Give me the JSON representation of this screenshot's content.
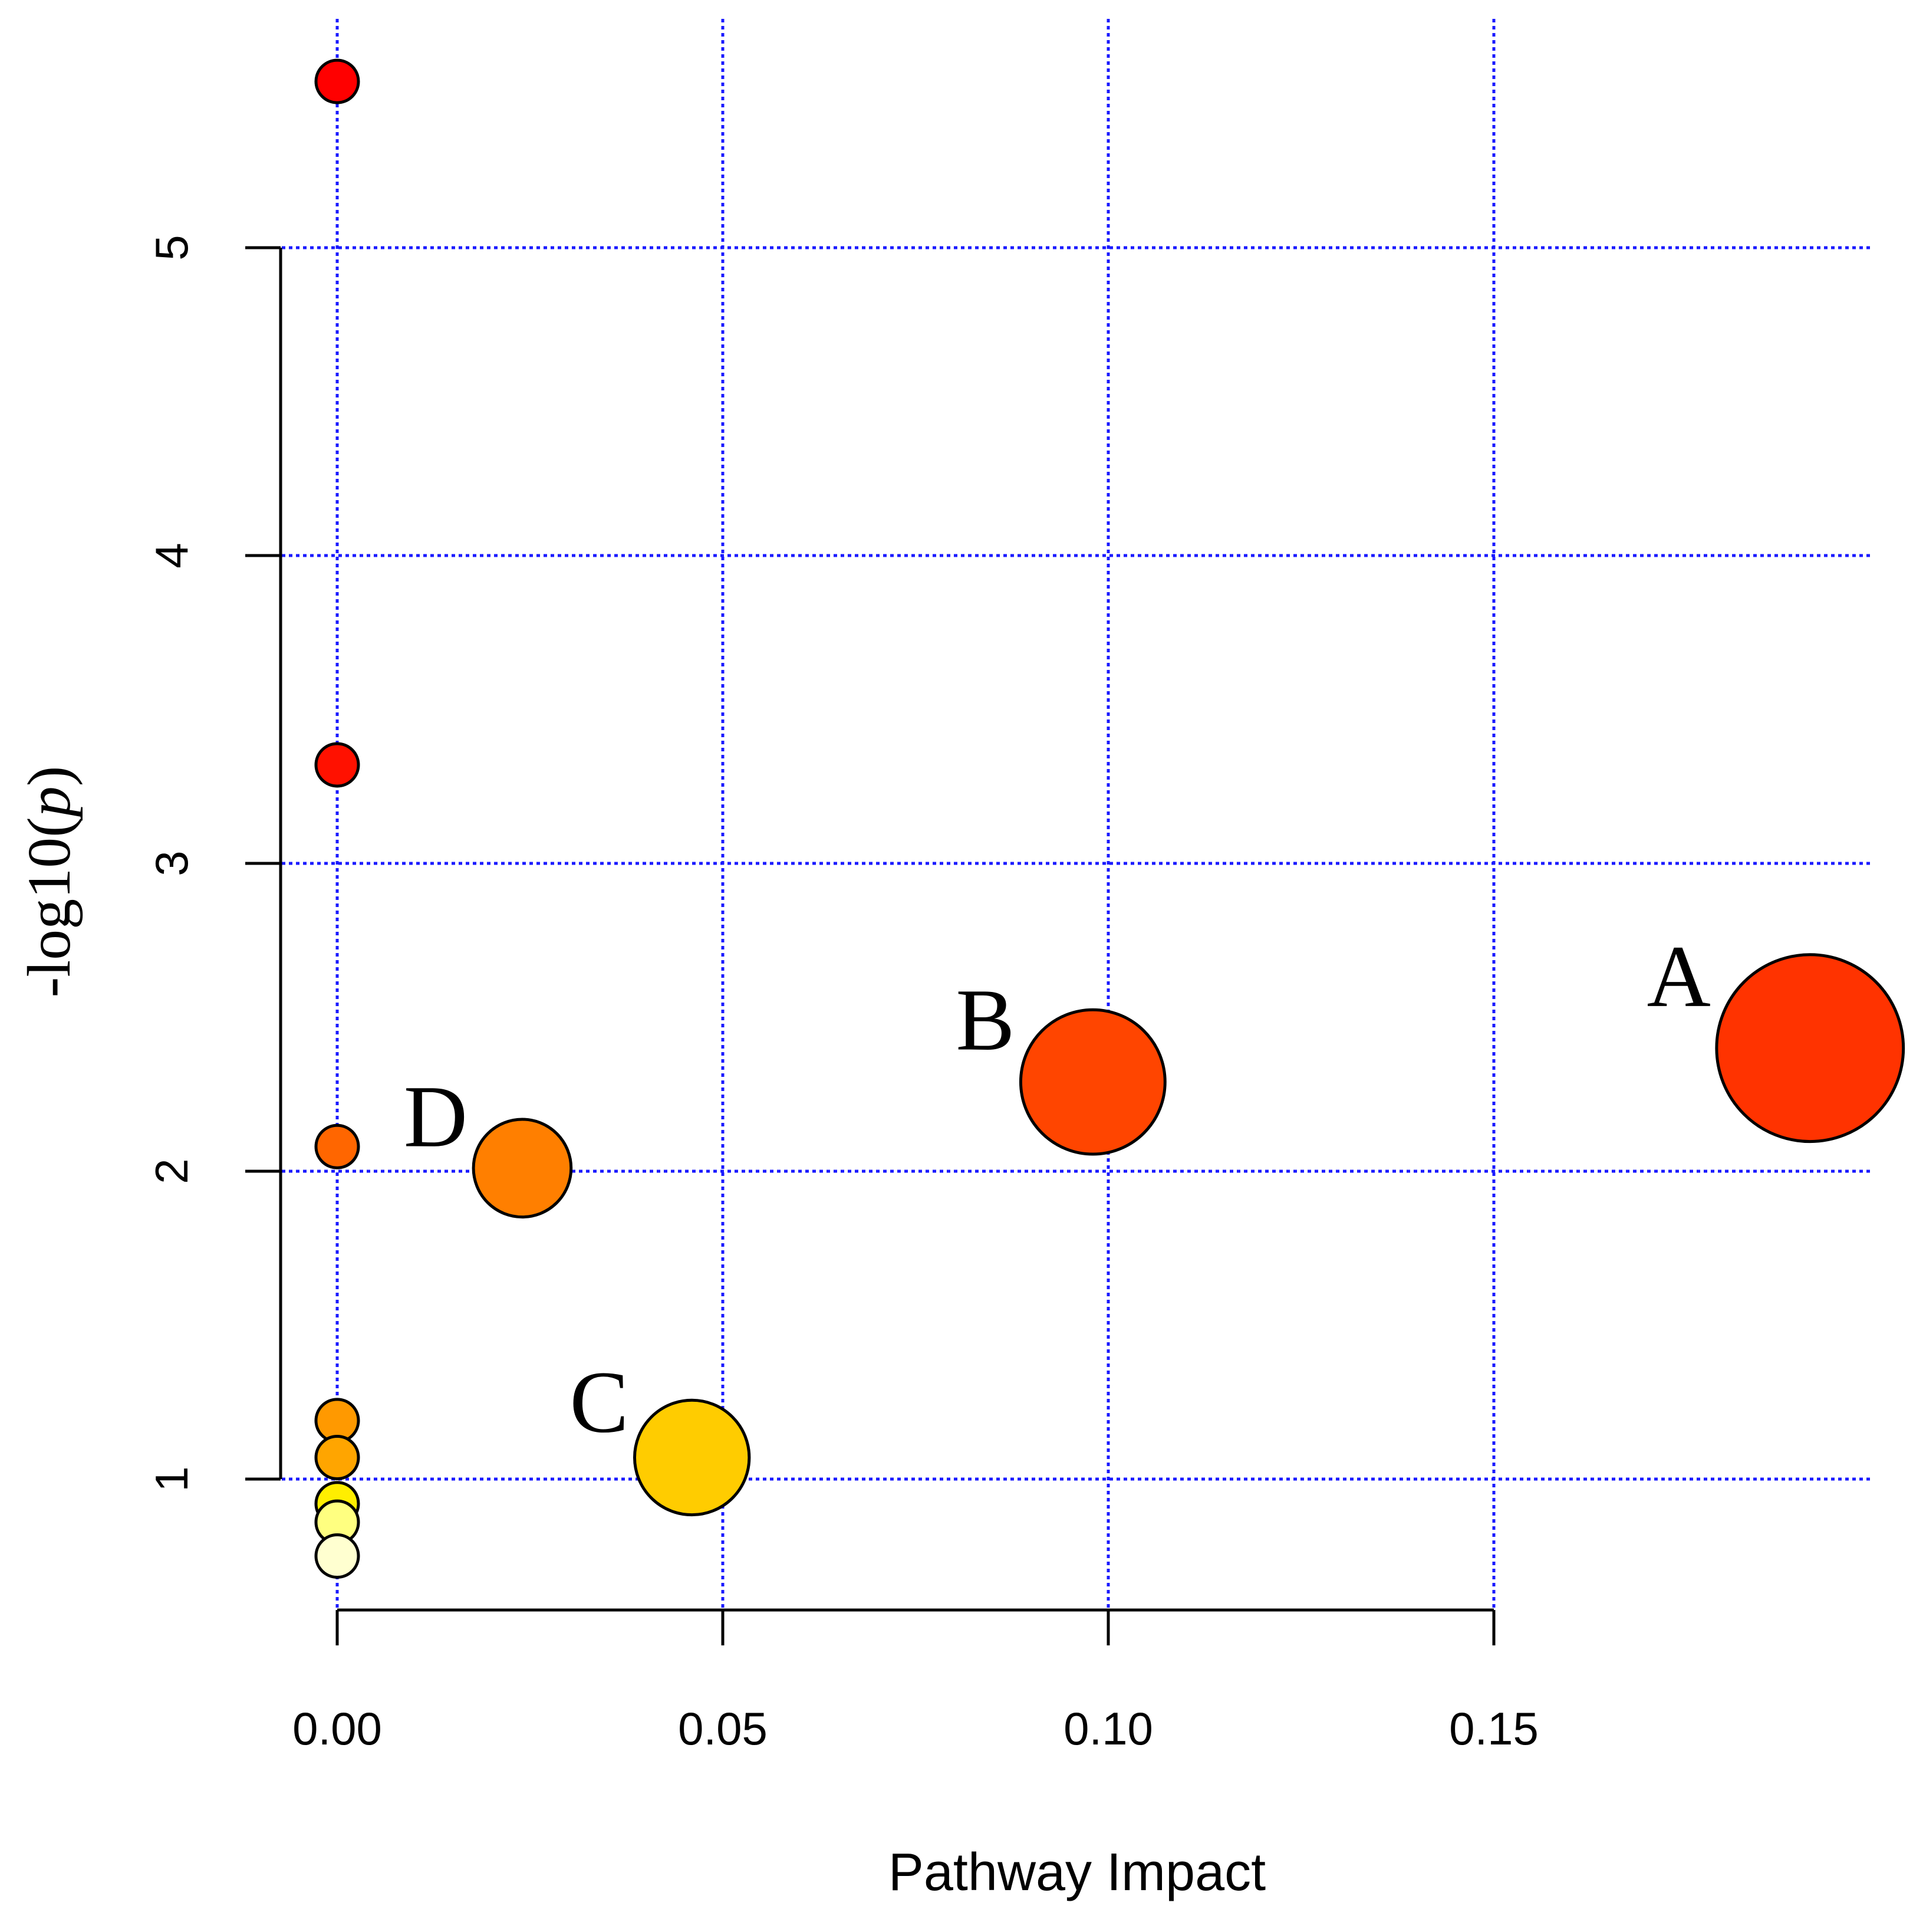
{
  "chart_data": {
    "type": "scatter",
    "title": "",
    "xlabel": "Pathway Impact",
    "ylabel_prefix": "-log10(",
    "ylabel_var": "p",
    "ylabel_suffix": ")",
    "xlim": [
      0.0,
      0.2
    ],
    "ylim": [
      0.6,
      5.55
    ],
    "x_axis_range": [
      0.0,
      0.15
    ],
    "y_axis_range": [
      1,
      5
    ],
    "x_ticks": [
      0.0,
      0.05,
      0.1,
      0.15
    ],
    "x_tick_labels": [
      "0.00",
      "0.05",
      "0.10",
      "0.15"
    ],
    "y_ticks": [
      1,
      2,
      3,
      4,
      5
    ],
    "y_tick_labels": [
      "1",
      "2",
      "3",
      "4",
      "5"
    ],
    "grid_x": [
      0.0,
      0.05,
      0.1,
      0.15
    ],
    "grid_y": [
      1,
      2,
      3,
      4,
      5
    ],
    "grid": true,
    "grid_color": "#1a1aff",
    "points": [
      {
        "x": 0.0,
        "y": 5.54,
        "size": 1.0,
        "color": "#ff0000",
        "label": ""
      },
      {
        "x": 0.0,
        "y": 3.32,
        "size": 1.0,
        "color": "#ff1100",
        "label": ""
      },
      {
        "x": 0.0,
        "y": 2.08,
        "size": 1.0,
        "color": "#ff6600",
        "label": ""
      },
      {
        "x": 0.0,
        "y": 1.19,
        "size": 1.0,
        "color": "#ff9900",
        "label": ""
      },
      {
        "x": 0.0,
        "y": 1.07,
        "size": 1.0,
        "color": "#ffa500",
        "label": ""
      },
      {
        "x": 0.0,
        "y": 0.92,
        "size": 1.0,
        "color": "#ffee00",
        "label": ""
      },
      {
        "x": 0.0,
        "y": 0.86,
        "size": 1.0,
        "color": "#ffff80",
        "label": ""
      },
      {
        "x": 0.0,
        "y": 0.75,
        "size": 1.0,
        "color": "#ffffd0",
        "label": ""
      },
      {
        "x": 0.024,
        "y": 2.01,
        "size": 2.3,
        "color": "#ff7f00",
        "label": "D"
      },
      {
        "x": 0.046,
        "y": 1.07,
        "size": 2.7,
        "color": "#ffcc00",
        "label": "C"
      },
      {
        "x": 0.098,
        "y": 2.29,
        "size": 3.4,
        "color": "#ff4500",
        "label": "B"
      },
      {
        "x": 0.191,
        "y": 2.4,
        "size": 4.4,
        "color": "#ff3300",
        "label": "A"
      }
    ]
  }
}
